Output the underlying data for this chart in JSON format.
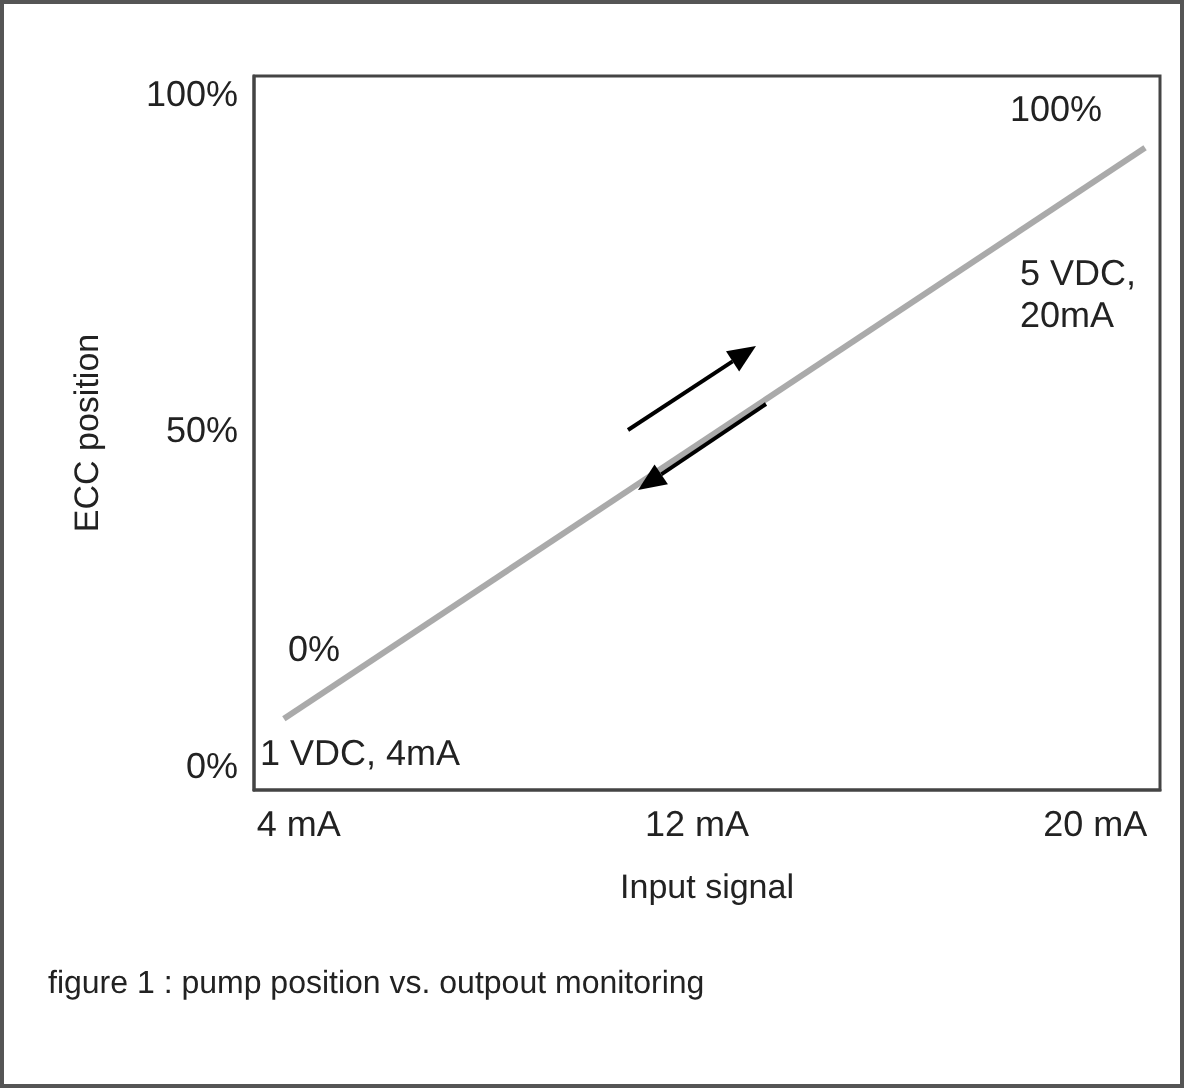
{
  "chart_data": {
    "type": "line",
    "xlabel": "Input signal",
    "ylabel": "ECC position",
    "x": [
      3.7,
      21
    ],
    "series": [
      {
        "color": "#aaaaaa",
        "values": [
          7,
          92
        ]
      }
    ],
    "xlim": [
      3.1,
      21.3
    ],
    "xticks": [
      {
        "value": 4,
        "label": "4 mA"
      },
      {
        "value": 12,
        "label": "12 mA"
      },
      {
        "value": 20,
        "label": "20 mA"
      }
    ],
    "ylim": [
      -3.6,
      102.7
    ],
    "yticks": [
      {
        "value": 0,
        "label": "0%"
      },
      {
        "value": 50,
        "label": "50%"
      },
      {
        "value": 100,
        "label": "100%"
      }
    ],
    "grid": false,
    "marker": "none",
    "line_style": "solid",
    "annotations": [
      "0%",
      "1 VDC, 4mA",
      "100%",
      "5 VDC,\n20mA",
      "figure 1 : pump position vs. outpout monitoring"
    ]
  }
}
